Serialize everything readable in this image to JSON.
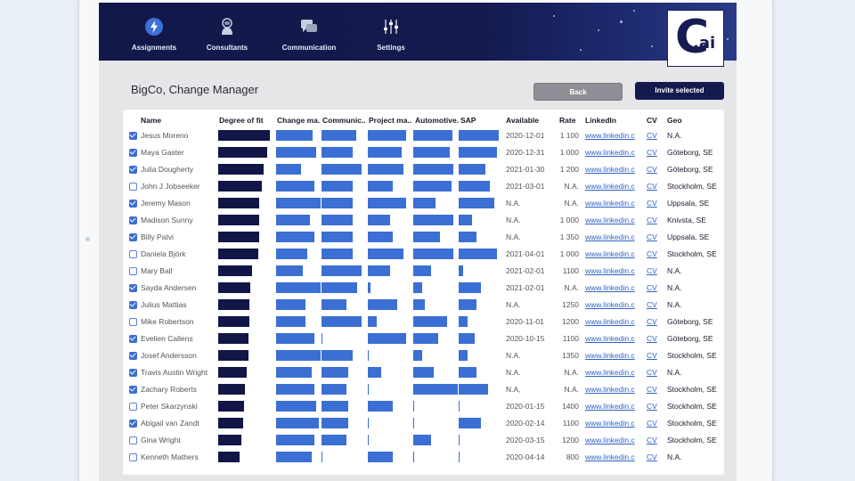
{
  "nav": {
    "items": [
      {
        "label": "Assignments",
        "icon": "lightning-icon",
        "active": true
      },
      {
        "label": "Consultants",
        "icon": "astronaut-icon"
      },
      {
        "label": "Communication",
        "icon": "chat-icon"
      },
      {
        "label": "Settings",
        "icon": "sliders-icon"
      }
    ]
  },
  "logo": {
    "letter": "C",
    "suffix": ".ai"
  },
  "page": {
    "title": "BigCo, Change Manager"
  },
  "buttons": {
    "back": "Back",
    "invite": "Invite selected"
  },
  "colors": {
    "navy": "#141a4e",
    "bar_dark": "#111646",
    "bar_blue": "#3b6fd4",
    "link": "#2f63c8",
    "accent_check": "#3c6fd2"
  },
  "table": {
    "headers": [
      "Name",
      "Degree of fit",
      "Change ma.",
      "Communic..",
      "Project ma..",
      "Automotive.",
      "SAP",
      "Available",
      "Rate",
      "LinkedIn",
      "CV",
      "Geo"
    ],
    "rows": [
      {
        "checked": true,
        "name": "Jesus Moreno",
        "fit": 1.0,
        "skills": [
          0.82,
          0.78,
          0.85,
          0.88,
          0.9
        ],
        "available": "2020-12-01",
        "rate": "1 100",
        "linkedin": "www.linkedin.c",
        "cv": "CV",
        "geo": "N.A."
      },
      {
        "checked": true,
        "name": "Maya Gaster",
        "fit": 0.95,
        "skills": [
          0.9,
          0.7,
          0.75,
          0.82,
          0.85
        ],
        "available": "2020-12-31",
        "rate": "1 000",
        "linkedin": "www.linkedin.c",
        "cv": "CV",
        "geo": "Göteborg, SE"
      },
      {
        "checked": true,
        "name": "Julia Dougherty",
        "fit": 0.88,
        "skills": [
          0.55,
          0.9,
          0.8,
          0.9,
          0.6
        ],
        "available": "2021-01-30",
        "rate": "1 200",
        "linkedin": "www.linkedin.c",
        "cv": "CV",
        "geo": "Göteborg, SE"
      },
      {
        "checked": false,
        "name": "John J Jobseeker",
        "fit": 0.85,
        "skills": [
          0.85,
          0.7,
          0.55,
          0.85,
          0.7
        ],
        "available": "2021-03-01",
        "rate": "N.A.",
        "linkedin": "www.linkedin.c",
        "cv": "CV",
        "geo": "Stockholm, SE"
      },
      {
        "checked": true,
        "name": "Jeremy Mason",
        "fit": 0.8,
        "skills": [
          1.0,
          0.7,
          0.85,
          0.5,
          0.8
        ],
        "available": "N.A.",
        "rate": "N.A.",
        "linkedin": "www.linkedin.c",
        "cv": "CV",
        "geo": "Uppsala, SE"
      },
      {
        "checked": true,
        "name": "Madison Sunny",
        "fit": 0.8,
        "skills": [
          0.75,
          0.7,
          0.5,
          0.9,
          0.3
        ],
        "available": "N.A.",
        "rate": "1 000",
        "linkedin": "www.linkedin.c",
        "cv": "CV",
        "geo": "Knivsta, SE"
      },
      {
        "checked": true,
        "name": "Billy Patvi",
        "fit": 0.8,
        "skills": [
          0.85,
          0.7,
          0.55,
          0.6,
          0.4
        ],
        "available": "N.A.",
        "rate": "1 350",
        "linkedin": "www.linkedin.c",
        "cv": "CV",
        "geo": "Uppsala, SE"
      },
      {
        "checked": false,
        "name": "Daniela Björk",
        "fit": 0.78,
        "skills": [
          0.7,
          0.7,
          0.8,
          0.9,
          0.85
        ],
        "available": "2021-04-01",
        "rate": "1 000",
        "linkedin": "www.linkedin.c",
        "cv": "CV",
        "geo": "Stockholm, SE"
      },
      {
        "checked": false,
        "name": "Mary Ball",
        "fit": 0.65,
        "skills": [
          0.6,
          0.9,
          0.5,
          0.4,
          0.1
        ],
        "available": "2021-02-01",
        "rate": "1100",
        "linkedin": "www.linkedin.c",
        "cv": "CV",
        "geo": "N.A."
      },
      {
        "checked": true,
        "name": "Sayda Andersen",
        "fit": 0.62,
        "skills": [
          1.0,
          0.8,
          0.05,
          0.2,
          0.5
        ],
        "available": "2021-02-01",
        "rate": "N.A.",
        "linkedin": "www.linkedin.c",
        "cv": "CV",
        "geo": "N.A."
      },
      {
        "checked": true,
        "name": "Julius Mattias",
        "fit": 0.6,
        "skills": [
          0.65,
          0.55,
          0.65,
          0.25,
          0.4
        ],
        "available": "N.A.",
        "rate": "1250",
        "linkedin": "www.linkedin.c",
        "cv": "CV",
        "geo": "N.A."
      },
      {
        "checked": false,
        "name": "Mike Robertson",
        "fit": 0.6,
        "skills": [
          0.65,
          0.9,
          0.2,
          0.75,
          0.2
        ],
        "available": "2020-11-01",
        "rate": "1200",
        "linkedin": "www.linkedin.c",
        "cv": "CV",
        "geo": "Göteborg, SE"
      },
      {
        "checked": true,
        "name": "Evelien Callens",
        "fit": 0.58,
        "skills": [
          0.85,
          0.02,
          0.85,
          0.55,
          0.35
        ],
        "available": "2020-10-15",
        "rate": "1100",
        "linkedin": "www.linkedin.c",
        "cv": "CV",
        "geo": "Göteborg, SE"
      },
      {
        "checked": true,
        "name": "Josef Andersson",
        "fit": 0.58,
        "skills": [
          1.0,
          0.7,
          0.02,
          0.2,
          0.2
        ],
        "available": "N.A.",
        "rate": "1350",
        "linkedin": "www.linkedin.c",
        "cv": "CV",
        "geo": "Stockholm, SE"
      },
      {
        "checked": true,
        "name": "Travis Austin Wright",
        "fit": 0.55,
        "skills": [
          0.8,
          0.6,
          0.3,
          0.45,
          0.4
        ],
        "available": "N.A.",
        "rate": "N.A.",
        "linkedin": "www.linkedin.c",
        "cv": "CV",
        "geo": "N.A."
      },
      {
        "checked": true,
        "name": "Zachary Roberts",
        "fit": 0.52,
        "skills": [
          0.85,
          0.55,
          0.02,
          1.0,
          0.65
        ],
        "available": "N.A,",
        "rate": "N.A.",
        "linkedin": "www.linkedin.c",
        "cv": "CV",
        "geo": "Stockholm, SE"
      },
      {
        "checked": false,
        "name": "Peter Skarzynski",
        "fit": 0.5,
        "skills": [
          0.9,
          0.6,
          0.55,
          0.02,
          0.02
        ],
        "available": "2020-01-15",
        "rate": "1400",
        "linkedin": "www.linkedin.c",
        "cv": "CV",
        "geo": "Stockholm, SE"
      },
      {
        "checked": true,
        "name": "Abigail van Zandt",
        "fit": 0.48,
        "skills": [
          0.95,
          0.6,
          0.02,
          0.02,
          0.5
        ],
        "available": "2020-02-14",
        "rate": "1100",
        "linkedin": "www.linkedin.c",
        "cv": "CV",
        "geo": "Stockholm, SE"
      },
      {
        "checked": false,
        "name": "Gina Wright",
        "fit": 0.45,
        "skills": [
          0.85,
          0.55,
          0.02,
          0.4,
          0.02
        ],
        "available": "2020-03-15",
        "rate": "1200",
        "linkedin": "www.linkedin.c",
        "cv": "CV",
        "geo": "Stockholm, SE"
      },
      {
        "checked": false,
        "name": "Kenneth Mathers",
        "fit": 0.42,
        "skills": [
          0.8,
          0.02,
          0.55,
          0.02,
          0.02
        ],
        "available": "2020-04-14",
        "rate": "800",
        "linkedin": "www.linkedin.c",
        "cv": "CV",
        "geo": "N.A."
      }
    ]
  }
}
